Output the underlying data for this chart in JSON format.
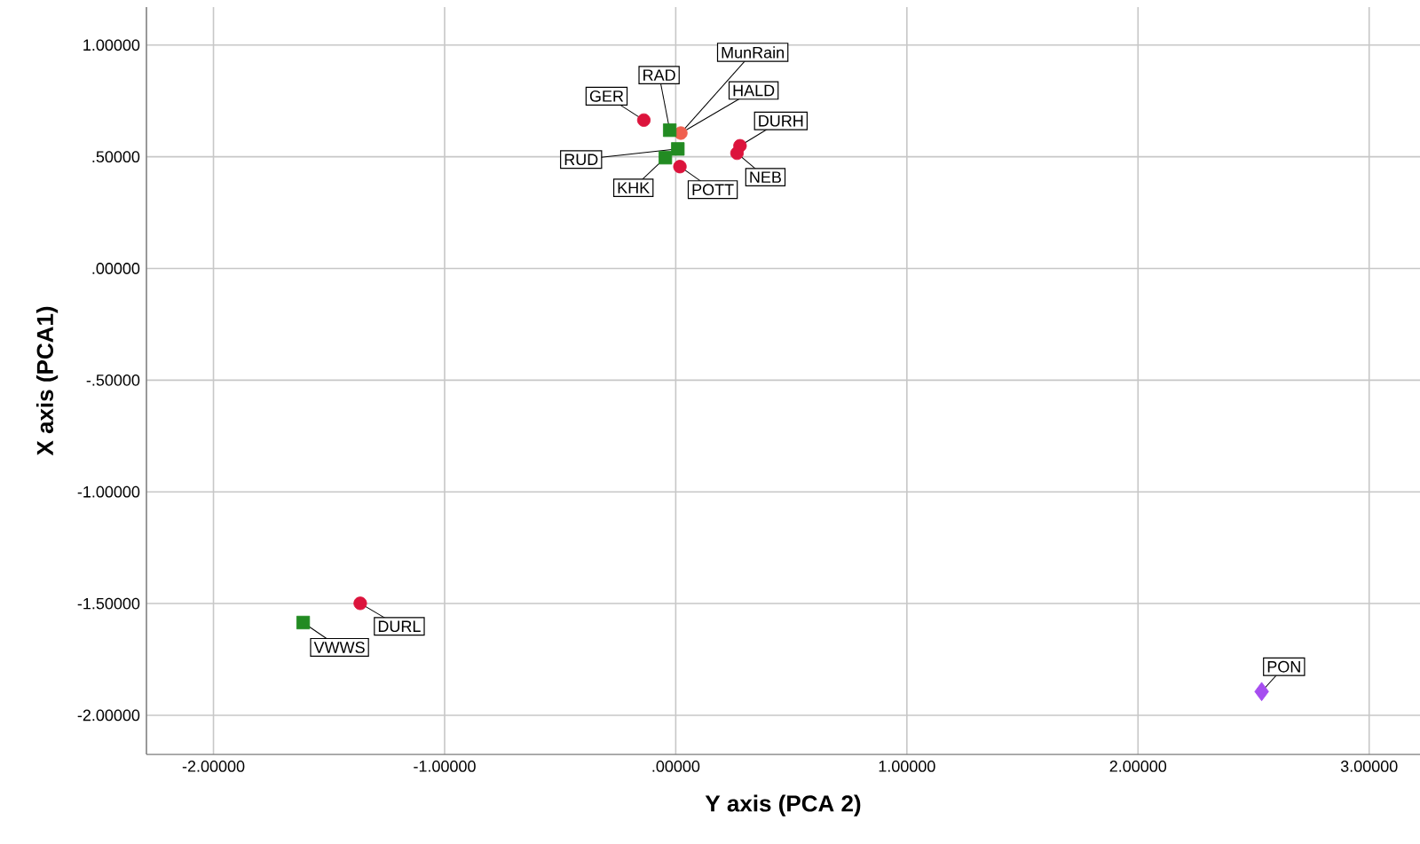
{
  "chart_data": {
    "type": "scatter",
    "xlabel": "Y axis (PCA 2)",
    "ylabel": "X axis (PCA1)",
    "xlim": [
      -2.29,
      3.22
    ],
    "ylim": [
      -2.175,
      1.17
    ],
    "xticks": [
      {
        "value": -2,
        "label": "-2.00000"
      },
      {
        "value": -1,
        "label": "-1.00000"
      },
      {
        "value": 0,
        "label": ".00000"
      },
      {
        "value": 1,
        "label": "1.00000"
      },
      {
        "value": 2,
        "label": "2.00000"
      },
      {
        "value": 3,
        "label": "3.00000"
      }
    ],
    "yticks": [
      {
        "value": -2,
        "label": "-2.00000"
      },
      {
        "value": -1.5,
        "label": "-1.50000"
      },
      {
        "value": -1,
        "label": "-1.00000"
      },
      {
        "value": -0.5,
        "label": "-.50000"
      },
      {
        "value": 0,
        "label": ".00000"
      },
      {
        "value": 0.5,
        "label": ".50000"
      },
      {
        "value": 1,
        "label": "1.00000"
      }
    ],
    "grid": true,
    "series": [
      {
        "color": "#dc143c",
        "marker": "circle",
        "x": [
          -0.138,
          0.018,
          0.278,
          0.265,
          -1.365
        ],
        "values": [
          0.664,
          0.456,
          0.549,
          0.516,
          -1.499
        ]
      },
      {
        "color": "#f0604f",
        "marker": "circle",
        "x": [
          0.022
        ],
        "values": [
          0.606
        ]
      },
      {
        "color": "#228b22",
        "marker": "square",
        "x": [
          -0.026,
          0.009,
          -0.045,
          -1.612
        ],
        "values": [
          0.619,
          0.535,
          0.496,
          -1.585
        ]
      },
      {
        "color": "#a64df0",
        "marker": "diamond",
        "x": [
          2.535
        ],
        "values": [
          -1.894
        ]
      }
    ],
    "annotations": [
      {
        "text": "GER",
        "x": -0.138,
        "y": 0.664
      },
      {
        "text": "RAD",
        "x": -0.026,
        "y": 0.619
      },
      {
        "text": "MunRain",
        "x": 0.022,
        "y": 0.606
      },
      {
        "text": "HALD",
        "x": 0.022,
        "y": 0.606
      },
      {
        "text": "DURH",
        "x": 0.278,
        "y": 0.549
      },
      {
        "text": "NEB",
        "x": 0.265,
        "y": 0.516
      },
      {
        "text": "POTT",
        "x": 0.018,
        "y": 0.456
      },
      {
        "text": "KHK",
        "x": -0.045,
        "y": 0.496
      },
      {
        "text": "RUD",
        "x": 0.009,
        "y": 0.535
      },
      {
        "text": "DURL",
        "x": -1.365,
        "y": -1.499
      },
      {
        "text": "VWWS",
        "x": -1.612,
        "y": -1.585
      },
      {
        "text": "PON",
        "x": 2.535,
        "y": -1.894
      }
    ]
  }
}
